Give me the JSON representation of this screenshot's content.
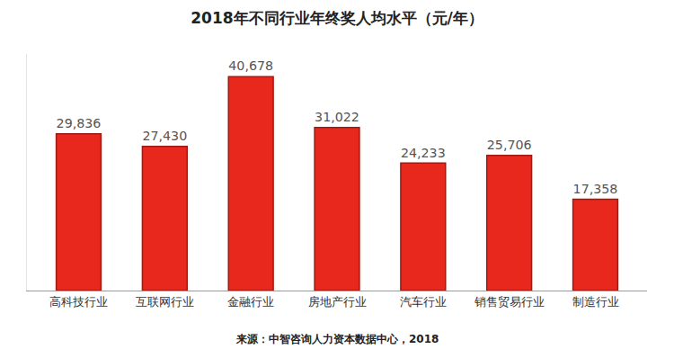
{
  "chart_data": {
    "type": "bar",
    "title": "2018年不同行业年终奖人均水平（元/年）",
    "categories": [
      "高科技行业",
      "互联网行业",
      "金融行业",
      "房地产行业",
      "汽车行业",
      "销售贸易行业",
      "制造行业"
    ],
    "values": [
      29836,
      27430,
      40678,
      31022,
      24233,
      25706,
      17358
    ],
    "value_labels": [
      "29,836",
      "27,430",
      "40,678",
      "31,022",
      "24,233",
      "25,706",
      "17,358"
    ],
    "data_labels": true,
    "color": "#e8271d",
    "ylim": [
      0,
      45000
    ],
    "yticks": [],
    "grid": false,
    "tick_labels": "x",
    "annotations": [
      "来源：中智咨询人力资本数据中心，2018"
    ]
  }
}
